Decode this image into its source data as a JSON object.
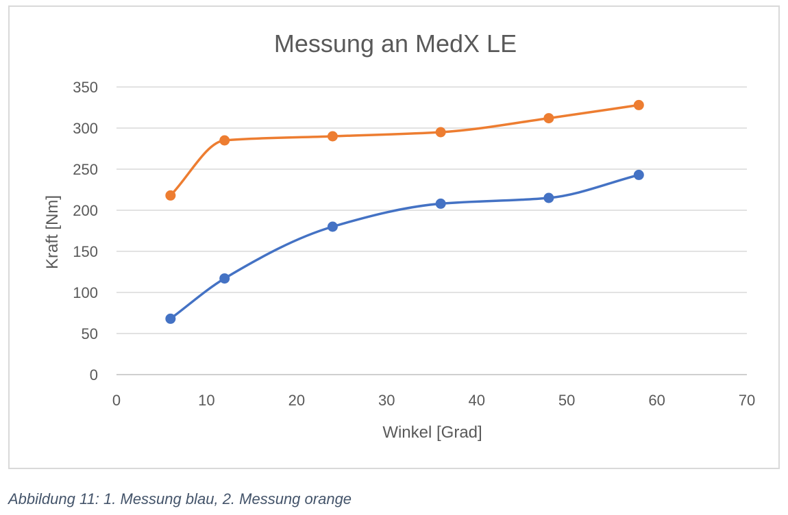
{
  "chart_data": {
    "type": "line",
    "title": "Messung an MedX LE",
    "xlabel": "Winkel [Grad]",
    "ylabel": "Kraft [Nm]",
    "xlim": [
      0,
      70
    ],
    "ylim": [
      0,
      350
    ],
    "xticks": [
      0,
      10,
      20,
      30,
      40,
      50,
      60,
      70
    ],
    "yticks": [
      0,
      50,
      100,
      150,
      200,
      250,
      300,
      350
    ],
    "grid": true,
    "smooth": true,
    "markers": true,
    "series": [
      {
        "color": "#4472c4",
        "points": [
          [
            6,
            68
          ],
          [
            12,
            117
          ],
          [
            24,
            180
          ],
          [
            36,
            208
          ],
          [
            48,
            215
          ],
          [
            58,
            243
          ]
        ]
      },
      {
        "color": "#ed7d31",
        "points": [
          [
            6,
            218
          ],
          [
            12,
            285
          ],
          [
            24,
            290
          ],
          [
            36,
            295
          ],
          [
            48,
            312
          ],
          [
            58,
            328
          ]
        ]
      }
    ]
  },
  "caption": "Abbildung 11: 1. Messung blau, 2. Messung orange"
}
